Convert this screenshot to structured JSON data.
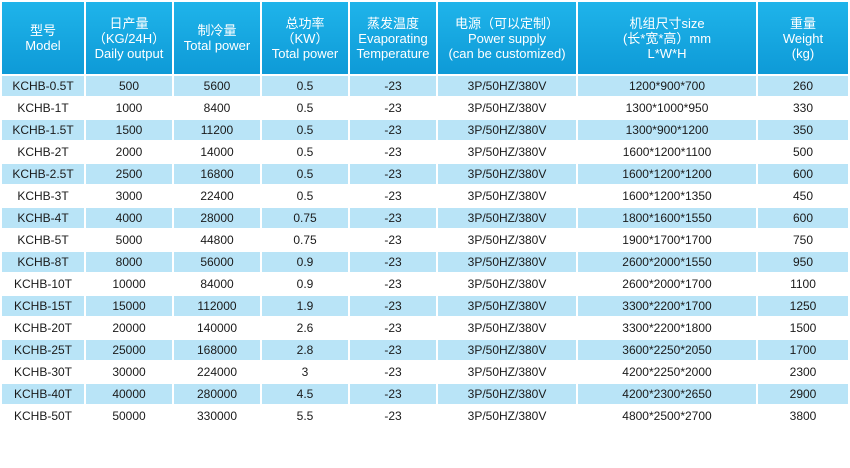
{
  "headers": [
    {
      "zh": "型号",
      "line2": "Model",
      "line3": ""
    },
    {
      "zh": "日产量",
      "line2": "（KG/24H）",
      "line3": "Daily output"
    },
    {
      "zh": "制冷量",
      "line2": "Total power",
      "line3": ""
    },
    {
      "zh": "总功率",
      "line2": "（KW）",
      "line3": "Total power"
    },
    {
      "zh": "蒸发温度",
      "line2": "Evaporating",
      "line3": "Temperature"
    },
    {
      "zh": "电源（可以定制）",
      "line2": "Power supply",
      "line3": "(can be customized)"
    },
    {
      "zh": "机组尺寸size",
      "line2": "(长*宽*高）mm",
      "line3": "L*W*H"
    },
    {
      "zh": "重量",
      "line2": "Weight",
      "line3": "(kg)"
    }
  ],
  "rows": [
    [
      "KCHB-0.5T",
      "500",
      "5600",
      "0.5",
      "-23",
      "3P/50HZ/380V",
      "1200*900*700",
      "260"
    ],
    [
      "KCHB-1T",
      "1000",
      "8400",
      "0.5",
      "-23",
      "3P/50HZ/380V",
      "1300*1000*950",
      "330"
    ],
    [
      "KCHB-1.5T",
      "1500",
      "11200",
      "0.5",
      "-23",
      "3P/50HZ/380V",
      "1300*900*1200",
      "350"
    ],
    [
      "KCHB-2T",
      "2000",
      "14000",
      "0.5",
      "-23",
      "3P/50HZ/380V",
      "1600*1200*1100",
      "500"
    ],
    [
      "KCHB-2.5T",
      "2500",
      "16800",
      "0.5",
      "-23",
      "3P/50HZ/380V",
      "1600*1200*1200",
      "600"
    ],
    [
      "KCHB-3T",
      "3000",
      "22400",
      "0.5",
      "-23",
      "3P/50HZ/380V",
      "1600*1200*1350",
      "450"
    ],
    [
      "KCHB-4T",
      "4000",
      "28000",
      "0.75",
      "-23",
      "3P/50HZ/380V",
      "1800*1600*1550",
      "600"
    ],
    [
      "KCHB-5T",
      "5000",
      "44800",
      "0.75",
      "-23",
      "3P/50HZ/380V",
      "1900*1700*1700",
      "750"
    ],
    [
      "KCHB-8T",
      "8000",
      "56000",
      "0.9",
      "-23",
      "3P/50HZ/380V",
      "2600*2000*1550",
      "950"
    ],
    [
      "KCHB-10T",
      "10000",
      "84000",
      "0.9",
      "-23",
      "3P/50HZ/380V",
      "2600*2000*1700",
      "1100"
    ],
    [
      "KCHB-15T",
      "15000",
      "112000",
      "1.9",
      "-23",
      "3P/50HZ/380V",
      "3300*2200*1700",
      "1250"
    ],
    [
      "KCHB-20T",
      "20000",
      "140000",
      "2.6",
      "-23",
      "3P/50HZ/380V",
      "3300*2200*1800",
      "1500"
    ],
    [
      "KCHB-25T",
      "25000",
      "168000",
      "2.8",
      "-23",
      "3P/50HZ/380V",
      "3600*2250*2050",
      "1700"
    ],
    [
      "KCHB-30T",
      "30000",
      "224000",
      "3",
      "-23",
      "3P/50HZ/380V",
      "4200*2250*2000",
      "2300"
    ],
    [
      "KCHB-40T",
      "40000",
      "280000",
      "4.5",
      "-23",
      "3P/50HZ/380V",
      "4200*2300*2650",
      "2900"
    ],
    [
      "KCHB-50T",
      "50000",
      "330000",
      "5.5",
      "-23",
      "3P/50HZ/380V",
      "4800*2500*2700",
      "3800"
    ]
  ],
  "colors": {
    "header_bg": "#13a7e2",
    "stripe": "#b9e4f7",
    "plain": "#ffffff"
  }
}
